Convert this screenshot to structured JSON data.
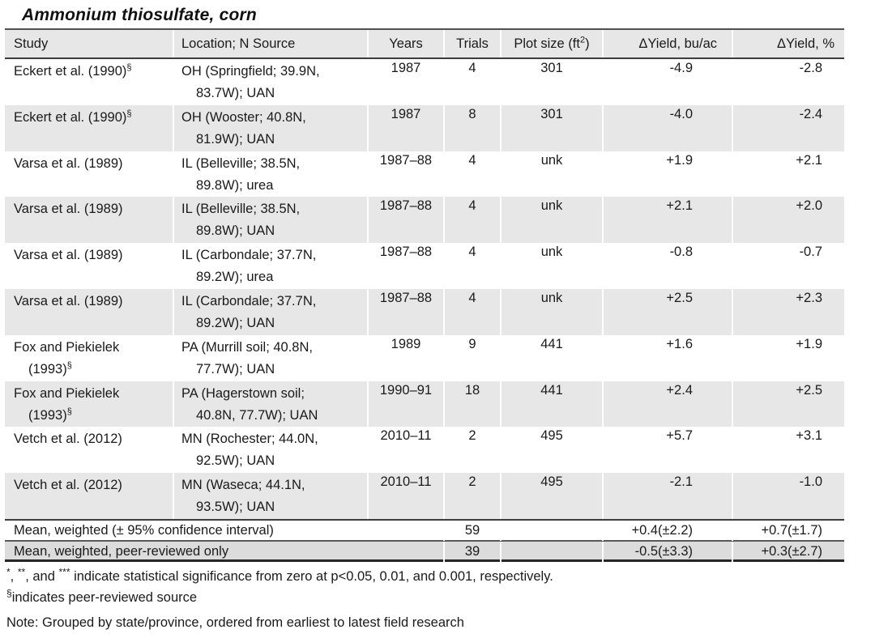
{
  "title": "Ammonium thiosulfate, corn",
  "table": {
    "headers": {
      "study": "Study",
      "location": "Location; N Source",
      "years": "Years",
      "trials": "Trials",
      "plot_prefix": "Plot size (ft",
      "plot_sup": "2",
      "plot_suffix": ")",
      "yield_bu": "ΔYield, bu/ac",
      "yield_pct": "ΔYield, %"
    },
    "rows": [
      {
        "study1": "Eckert et al. (1990)",
        "study1_sup": "§",
        "study2": "",
        "study2_sup": "",
        "loc1": "OH (Springfield; 39.9N,",
        "loc2": "83.7W); UAN",
        "years": "1987",
        "trials": "4",
        "plot": "301",
        "bu": "-4.9",
        "pct": "-2.8",
        "shaded": false
      },
      {
        "study1": "Eckert et al. (1990)",
        "study1_sup": "§",
        "study2": "",
        "study2_sup": "",
        "loc1": "OH (Wooster; 40.8N,",
        "loc2": "81.9W); UAN",
        "years": "1987",
        "trials": "8",
        "plot": "301",
        "bu": "-4.0",
        "pct": "-2.4",
        "shaded": true
      },
      {
        "study1": "Varsa et al. (1989)",
        "study1_sup": "",
        "study2": "",
        "study2_sup": "",
        "loc1": "IL (Belleville; 38.5N,",
        "loc2": "89.8W); urea",
        "years": "1987–88",
        "trials": "4",
        "plot": "unk",
        "bu": "+1.9",
        "pct": "+2.1",
        "shaded": false
      },
      {
        "study1": "Varsa et al. (1989)",
        "study1_sup": "",
        "study2": "",
        "study2_sup": "",
        "loc1": "IL (Belleville; 38.5N,",
        "loc2": "89.8W); UAN",
        "years": "1987–88",
        "trials": "4",
        "plot": "unk",
        "bu": "+2.1",
        "pct": "+2.0",
        "shaded": true
      },
      {
        "study1": "Varsa et al. (1989)",
        "study1_sup": "",
        "study2": "",
        "study2_sup": "",
        "loc1": "IL (Carbondale; 37.7N,",
        "loc2": "89.2W); urea",
        "years": "1987–88",
        "trials": "4",
        "plot": "unk",
        "bu": "-0.8",
        "pct": "-0.7",
        "shaded": false
      },
      {
        "study1": "Varsa et al. (1989)",
        "study1_sup": "",
        "study2": "",
        "study2_sup": "",
        "loc1": "IL (Carbondale; 37.7N,",
        "loc2": "89.2W); UAN",
        "years": "1987–88",
        "trials": "4",
        "plot": "unk",
        "bu": "+2.5",
        "pct": "+2.3",
        "shaded": true
      },
      {
        "study1": "Fox and Piekielek",
        "study1_sup": "",
        "study2": "(1993)",
        "study2_sup": "§",
        "loc1": "PA (Murrill soil; 40.8N,",
        "loc2": "77.7W); UAN",
        "years": "1989",
        "trials": "9",
        "plot": "441",
        "bu": "+1.6",
        "pct": "+1.9",
        "shaded": false
      },
      {
        "study1": "Fox and Piekielek",
        "study1_sup": "",
        "study2": "(1993)",
        "study2_sup": "§",
        "loc1": "PA (Hagerstown soil;",
        "loc2": "40.8N, 77.7W); UAN",
        "years": "1990–91",
        "trials": "18",
        "plot": "441",
        "bu": "+2.4",
        "pct": "+2.5",
        "shaded": true
      },
      {
        "study1": "Vetch et al. (2012)",
        "study1_sup": "",
        "study2": "",
        "study2_sup": "",
        "loc1": "MN (Rochester; 44.0N,",
        "loc2": "92.5W); UAN",
        "years": "2010–11",
        "trials": "2",
        "plot": "495",
        "bu": "+5.7",
        "pct": "+3.1",
        "shaded": false
      },
      {
        "study1": "Vetch et al. (2012)",
        "study1_sup": "",
        "study2": "",
        "study2_sup": "",
        "loc1": "MN (Waseca; 44.1N,",
        "loc2": "93.5W); UAN",
        "years": "2010–11",
        "trials": "2",
        "plot": "495",
        "bu": "-2.1",
        "pct": "-1.0",
        "shaded": true
      }
    ],
    "summary": [
      {
        "label": "Mean, weighted (± 95% confidence interval)",
        "trials": "59",
        "plot": "",
        "bu": "+0.4(±2.2)",
        "pct": "+0.7(±1.7)"
      },
      {
        "label": "Mean, weighted, peer-reviewed only",
        "trials": "39",
        "plot": "",
        "bu": "-0.5(±3.3)",
        "pct": "+0.3(±2.7)"
      }
    ]
  },
  "footnotes": {
    "sig": {
      "sup1": "*",
      "sep1": ", ",
      "sup2": "**",
      "sep2": ", and ",
      "sup3": "***",
      "text": " indicate statistical significance from zero at p<0.05, 0.01, and 0.001, respectively."
    },
    "peer": {
      "sup": "§",
      "text": "indicates peer-reviewed source"
    },
    "note": "Note: Grouped by state/province, ordered from earliest to latest field research"
  },
  "colors": {
    "header_bg": "#e7e7e7",
    "alt_row_bg": "#e7e7e7",
    "summary_shaded_bg": "#dcdcdc",
    "border_dark": "#3d3d3d",
    "text": "#1a1a1a"
  }
}
